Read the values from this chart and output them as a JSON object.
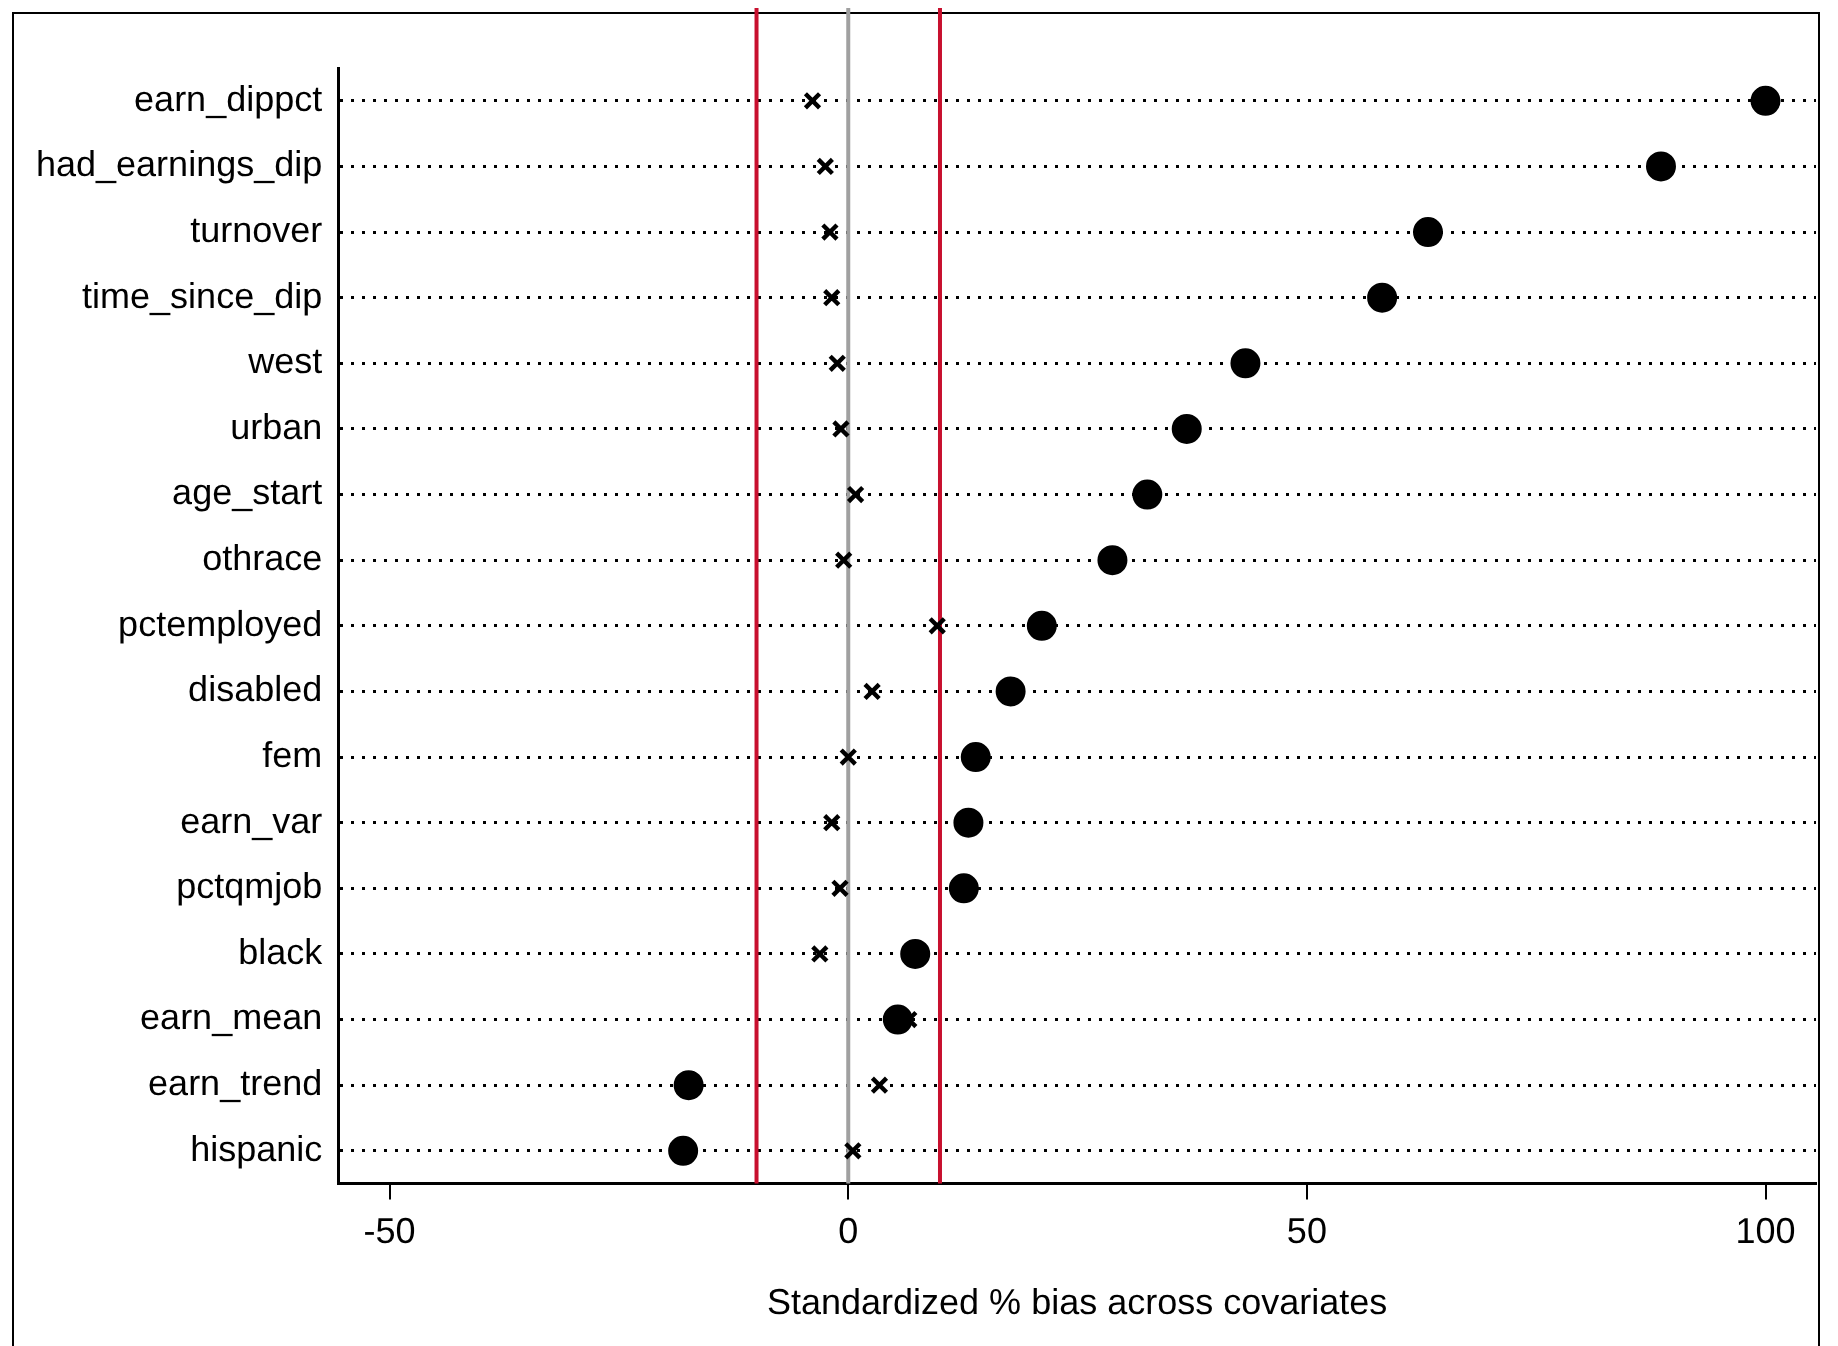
{
  "chart_data": {
    "type": "scatter",
    "orientation": "horizontal",
    "xlabel": "Standardized % bias across covariates",
    "categories": [
      "earn_dippct",
      "had_earnings_dip",
      "turnover",
      "time_since_dip",
      "west",
      "urban",
      "age_start",
      "othrace",
      "pctemployed",
      "disabled",
      "fem",
      "earn_var",
      "pctqmjob",
      "black",
      "earn_mean",
      "earn_trend",
      "hispanic"
    ],
    "series": [
      {
        "color": "#000000",
        "marker": "circle",
        "values": [
          100,
          88.6,
          63.2,
          58.2,
          43.3,
          36.9,
          32.6,
          28.8,
          21.1,
          17.7,
          13.9,
          13.1,
          12.6,
          7.3,
          5.4,
          -17.4,
          -18.0
        ]
      },
      {
        "color": "#000000",
        "marker": "cross",
        "values": [
          -3.9,
          -2.5,
          -2.0,
          -1.8,
          -1.2,
          -0.8,
          0.8,
          -0.5,
          9.7,
          2.6,
          0,
          -1.8,
          -0.9,
          -3.1,
          6.6,
          3.4,
          0.5
        ]
      }
    ],
    "xlim": [
      -55.6,
      105.5
    ],
    "xticks": [
      -50,
      0,
      50,
      100
    ],
    "ref_lines": [
      {
        "axis": "x",
        "value": -10,
        "color": "#c8102e"
      },
      {
        "axis": "x",
        "value": 0,
        "color": "#a0a0a0"
      },
      {
        "axis": "x",
        "value": 10,
        "color": "#c8102e"
      }
    ],
    "grid": "y",
    "line_style": "dotted",
    "legend": false
  }
}
